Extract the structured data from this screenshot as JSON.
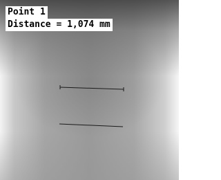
{
  "overlay": {
    "point_label": "Point 1",
    "distance_label": "Distance = 1,074 mm"
  }
}
